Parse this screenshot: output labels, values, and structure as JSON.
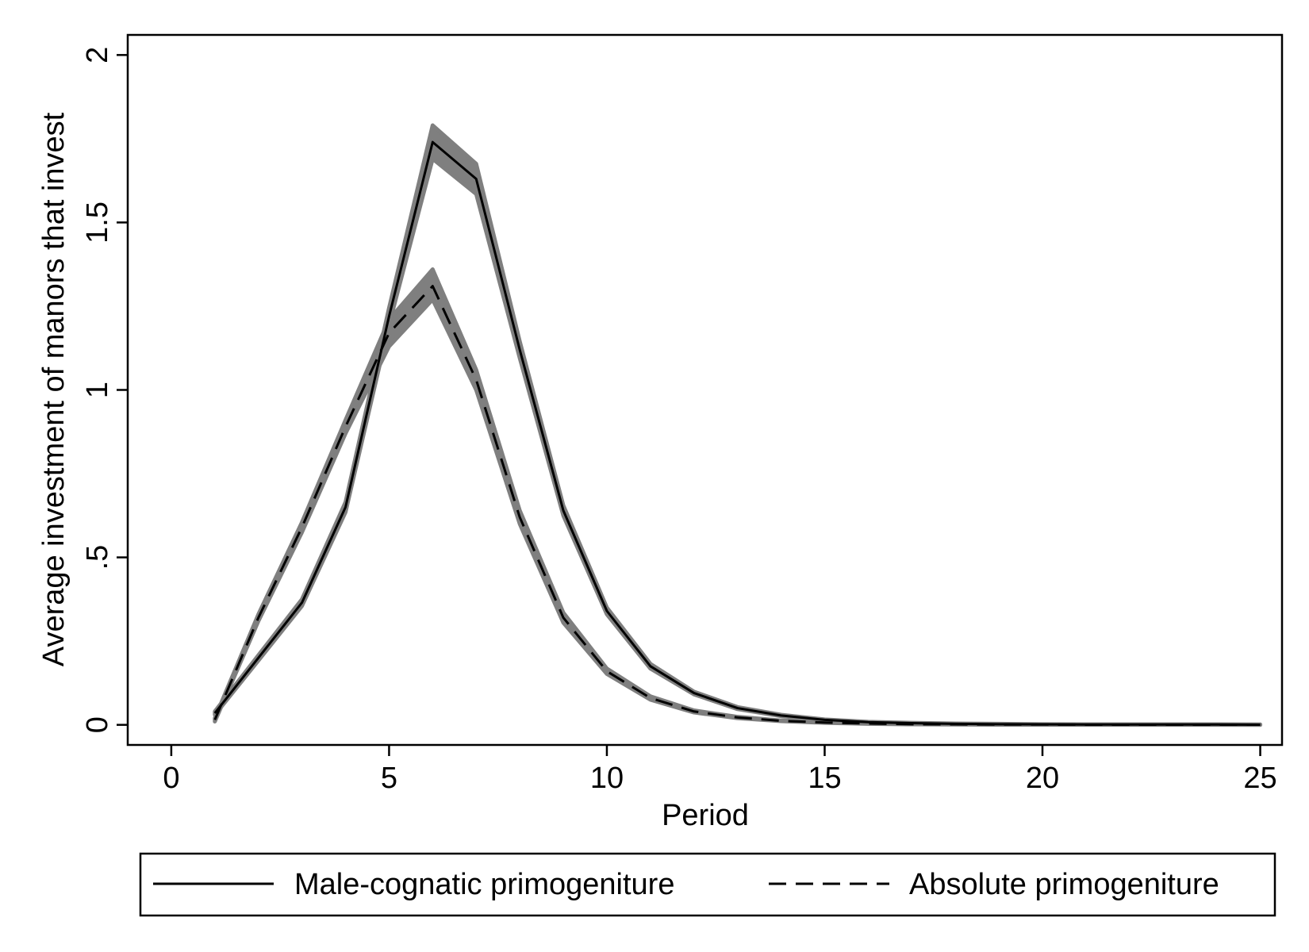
{
  "chart_data": {
    "type": "line",
    "title": "",
    "xlabel": "Period",
    "ylabel": "Average investment of manors that invest",
    "xlim": [
      -1,
      25.5
    ],
    "ylim": [
      -0.06,
      2.06
    ],
    "xticks": [
      0,
      5,
      10,
      15,
      20,
      25
    ],
    "xtick_labels": [
      "0",
      "5",
      "10",
      "15",
      "20",
      "25"
    ],
    "yticks": [
      0,
      0.5,
      1,
      1.5,
      2
    ],
    "ytick_labels": [
      "0",
      ".5",
      "1",
      "1.5",
      "2"
    ],
    "grid": false,
    "legend_position": "bottom",
    "colors": {
      "line": "#000000",
      "band": "#7f7f7f",
      "frame": "#000000",
      "background": "#ffffff"
    },
    "x": [
      1,
      2,
      3,
      4,
      5,
      6,
      7,
      8,
      9,
      10,
      11,
      12,
      13,
      14,
      15,
      16,
      17,
      18,
      19,
      20,
      21,
      22,
      23,
      24,
      25
    ],
    "series": [
      {
        "name": "Male-cognatic primogeniture",
        "line_style": "solid",
        "values": [
          0.035,
          0.2,
          0.365,
          0.65,
          1.22,
          1.74,
          1.63,
          1.12,
          0.64,
          0.34,
          0.175,
          0.095,
          0.05,
          0.028,
          0.015,
          0.008,
          0.005,
          0.003,
          0.002,
          0.0015,
          0.001,
          0.001,
          0.001,
          0.001,
          0.0005
        ],
        "ci_lower": [
          0.03,
          0.192,
          0.355,
          0.635,
          1.195,
          1.69,
          1.585,
          1.095,
          0.625,
          0.33,
          0.168,
          0.091,
          0.047,
          0.026,
          0.014,
          0.007,
          0.004,
          0.002,
          0.001,
          0.001,
          0.0005,
          0.0005,
          0.0005,
          0.0005,
          0.0
        ],
        "ci_upper": [
          0.04,
          0.208,
          0.375,
          0.665,
          1.245,
          1.79,
          1.675,
          1.145,
          0.655,
          0.35,
          0.182,
          0.099,
          0.053,
          0.03,
          0.016,
          0.009,
          0.006,
          0.004,
          0.003,
          0.002,
          0.0015,
          0.0015,
          0.0015,
          0.0015,
          0.001
        ]
      },
      {
        "name": "Absolute primogeniture",
        "line_style": "dashed",
        "values": [
          0.015,
          0.32,
          0.59,
          0.89,
          1.17,
          1.31,
          1.03,
          0.62,
          0.32,
          0.16,
          0.08,
          0.04,
          0.022,
          0.012,
          0.007,
          0.004,
          0.002,
          0.0015,
          0.001,
          0.001,
          0.0005,
          0.0005,
          0.0005,
          0.0005,
          0.0005
        ],
        "ci_lower": [
          0.01,
          0.31,
          0.575,
          0.87,
          1.13,
          1.27,
          1.0,
          0.6,
          0.305,
          0.152,
          0.075,
          0.037,
          0.02,
          0.011,
          0.006,
          0.003,
          0.0015,
          0.001,
          0.0005,
          0.0005,
          0.0,
          0.0,
          0.0,
          0.0,
          0.0
        ],
        "ci_upper": [
          0.02,
          0.33,
          0.605,
          0.91,
          1.21,
          1.36,
          1.06,
          0.64,
          0.335,
          0.168,
          0.085,
          0.043,
          0.024,
          0.013,
          0.008,
          0.005,
          0.0025,
          0.002,
          0.0015,
          0.0015,
          0.001,
          0.001,
          0.001,
          0.001,
          0.001
        ]
      }
    ]
  }
}
